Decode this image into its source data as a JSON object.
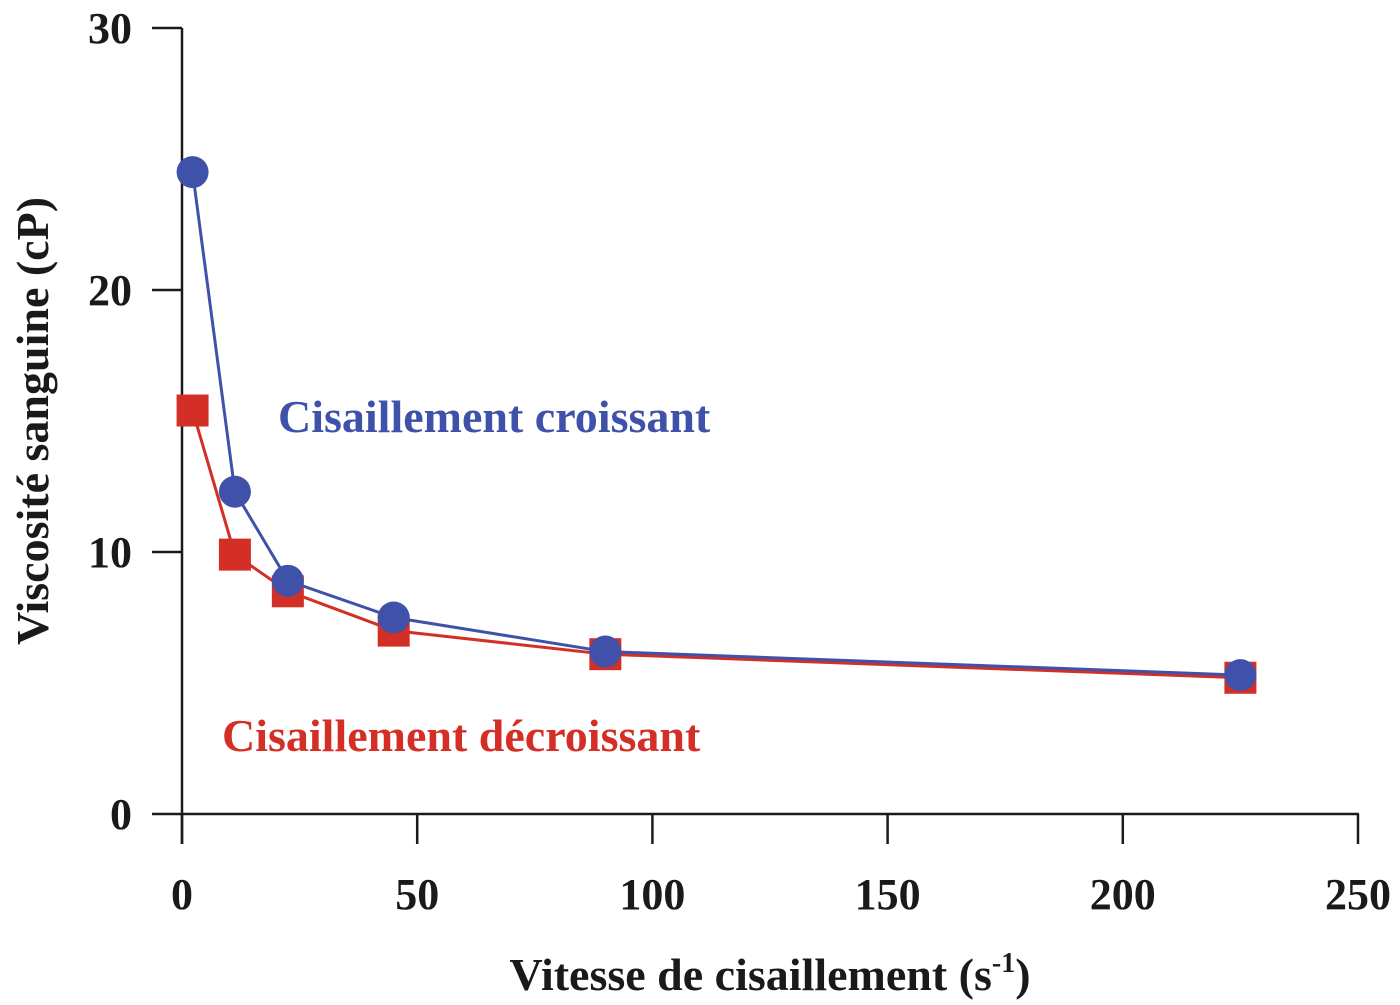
{
  "chart_data": {
    "type": "line",
    "xlabel": "Vitesse de cisaillement (s",
    "xlabel_superscript": "-1",
    "xlabel_suffix": ")",
    "ylabel": "Viscosité sanguine (cP)",
    "xlim": [
      0,
      250
    ],
    "ylim": [
      0,
      30
    ],
    "x_ticks": [
      0,
      50,
      100,
      150,
      200,
      250
    ],
    "y_ticks": [
      0,
      10,
      20,
      30
    ],
    "grid": false,
    "series": [
      {
        "name": "Cisaillement croissant",
        "color": "#3f51a8",
        "marker": "circle",
        "x": [
          2.25,
          11.25,
          22.5,
          45,
          90,
          225
        ],
        "y": [
          24.5,
          12.3,
          8.9,
          7.5,
          6.2,
          5.3
        ]
      },
      {
        "name": "Cisaillement décroissant",
        "color": "#d42f26",
        "marker": "square",
        "x": [
          2.25,
          11.25,
          22.5,
          45,
          90,
          225
        ],
        "y": [
          15.4,
          9.9,
          8.5,
          7.0,
          6.1,
          5.2
        ]
      }
    ]
  }
}
